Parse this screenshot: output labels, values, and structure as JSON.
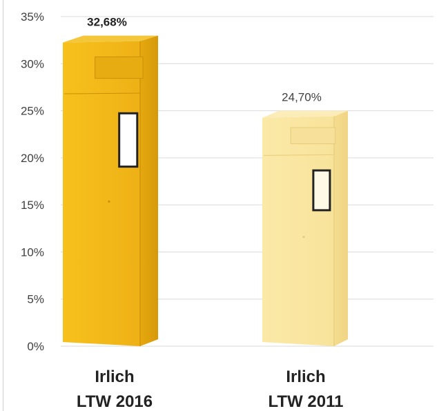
{
  "chart_data": {
    "type": "bar",
    "categories": [
      [
        "Irlich",
        "LTW 2016"
      ],
      [
        "Irlich",
        "LTW 2011"
      ]
    ],
    "values": [
      32.68,
      24.7
    ],
    "value_labels": [
      "32,68%",
      "24,70%"
    ],
    "bold_value_label": [
      true,
      false
    ],
    "ylim": [
      0,
      35
    ],
    "yticks": [
      "0%",
      "5%",
      "10%",
      "15%",
      "20%",
      "25%",
      "30%",
      "35%"
    ],
    "ytick_values": [
      0,
      5,
      10,
      15,
      20,
      25,
      30,
      35
    ],
    "grid": true,
    "bar_style": "postbox",
    "colors": {
      "bar_primary": "#f2b51c",
      "bar_secondary": "#f8e6a3",
      "grid": "#d9d9d9",
      "text": "#404040"
    }
  }
}
